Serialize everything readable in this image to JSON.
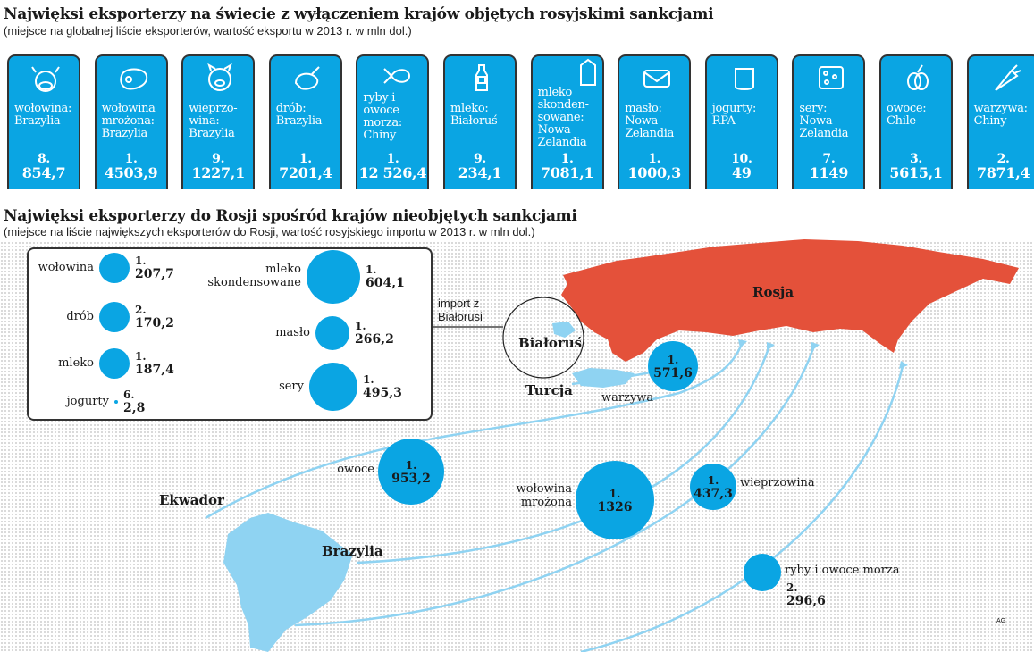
{
  "section1": {
    "title": "Najwięksi eksporterzy na świecie z wyłączeniem krajów objętych rosyjskimi sankcjami",
    "subtitle": "(miejsce na globalnej liście eksporterów, wartość eksportu w 2013 r. w mln dol.)",
    "cards": [
      {
        "icon": "cow-icon",
        "label": "wołowina: Brazylia",
        "rank": "8.",
        "value": "854,7"
      },
      {
        "icon": "steak-icon",
        "label": "wołowina mrożona: Brazylia",
        "rank": "1.",
        "value": "4503,9"
      },
      {
        "icon": "pig-icon",
        "label": "wieprzo-wina: Brazylia",
        "rank": "9.",
        "value": "1227,1"
      },
      {
        "icon": "chicken-leg-icon",
        "label": "drób: Brazylia",
        "rank": "1.",
        "value": "7201,4"
      },
      {
        "icon": "fish-icon",
        "label": "ryby i owoce morza: Chiny",
        "rank": "1.",
        "value": "12 526,4"
      },
      {
        "icon": "milk-bottle-icon",
        "label": "mleko: Białoruś",
        "rank": "9.",
        "value": "234,1"
      },
      {
        "icon": "milk-carton-icon",
        "label": "mleko skonden-sowane: Nowa Zelandia",
        "rank": "1.",
        "value": "7081,1"
      },
      {
        "icon": "butter-icon",
        "label": "masło: Nowa Zelandia",
        "rank": "1.",
        "value": "1000,3"
      },
      {
        "icon": "yogurt-icon",
        "label": "jogurty: RPA",
        "rank": "10.",
        "value": "49"
      },
      {
        "icon": "cheese-icon",
        "label": "sery: Nowa Zelandia",
        "rank": "7.",
        "value": "1149"
      },
      {
        "icon": "plums-icon",
        "label": "owoce: Chile",
        "rank": "3.",
        "value": "5615,1"
      },
      {
        "icon": "carrot-icon",
        "label": "warzywa: Chiny",
        "rank": "2.",
        "value": "7871,4"
      }
    ]
  },
  "section2": {
    "title": "Najwięksi eksporterzy do Rosji spośród krajów nieobjętych sankcjami",
    "subtitle": "(miejsce na liście największych eksporterów do Rosji, wartość rosyjskiego importu w 2013 r. w mln dol.)",
    "belarus": {
      "caption": "import z Białorusi",
      "items": [
        {
          "label": "wołowina",
          "rank": "1.",
          "value": "207,7"
        },
        {
          "label": "drób",
          "rank": "2.",
          "value": "170,2"
        },
        {
          "label": "mleko",
          "rank": "1.",
          "value": "187,4"
        },
        {
          "label": "jogurty",
          "rank": "6.",
          "value": "2,8"
        },
        {
          "label": "mleko skondensowane",
          "rank": "1.",
          "value": "604,1"
        },
        {
          "label": "masło",
          "rank": "1.",
          "value": "266,2"
        },
        {
          "label": "sery",
          "rank": "1.",
          "value": "495,3"
        }
      ]
    },
    "flows": [
      {
        "label": "warzywa",
        "rank": "1.",
        "value": "571,6"
      },
      {
        "label": "owoce",
        "rank": "1.",
        "value": "953,2"
      },
      {
        "label": "wołowina mrożona",
        "rank": "1.",
        "value": "1326"
      },
      {
        "label": "wieprzowina",
        "rank": "1.",
        "value": "437,3"
      },
      {
        "label": "ryby i owoce morza",
        "rank": "2.",
        "value": "296,6"
      }
    ],
    "countries": {
      "russia": "Rosja",
      "belarus": "Białoruś",
      "turkey": "Turcja",
      "ecuador": "Ekwador",
      "brazil": "Brazylia"
    },
    "credit": "AG"
  },
  "colors": {
    "blue": "#0aa5e3",
    "light_blue": "#8fd3f2",
    "russia": "#e4513a"
  }
}
